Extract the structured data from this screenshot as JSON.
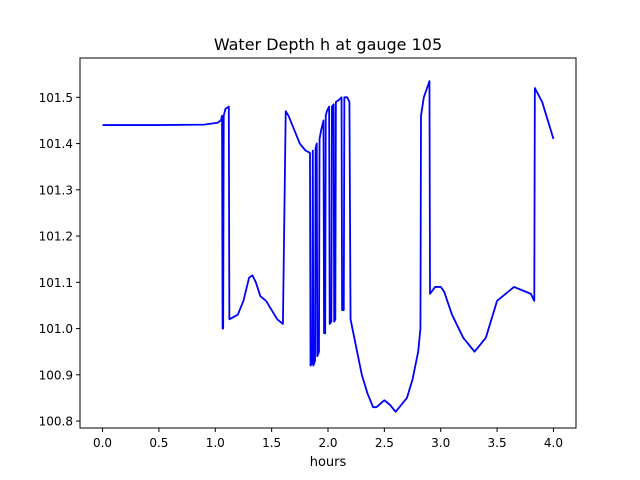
{
  "chart_data": {
    "type": "line",
    "title": "Water Depth h at gauge 105",
    "xlabel": "hours",
    "ylabel": "",
    "xlim": [
      -0.2,
      4.2
    ],
    "ylim": [
      100.785,
      101.585
    ],
    "x_ticks": [
      0,
      0.5,
      1,
      1.5,
      2,
      2.5,
      3,
      3.5,
      4
    ],
    "x_tick_labels": [
      "0.0",
      "0.5",
      "1.0",
      "1.5",
      "2.0",
      "2.5",
      "3.0",
      "3.5",
      "4.0"
    ],
    "y_ticks": [
      100.8,
      100.9,
      101.0,
      101.1,
      101.2,
      101.3,
      101.4,
      101.5
    ],
    "y_tick_labels": [
      "100.8",
      "100.9",
      "101.0",
      "101.1",
      "101.2",
      "101.3",
      "101.4",
      "101.5"
    ],
    "grid": false,
    "line_color": "#0000ff",
    "series": [
      {
        "points": [
          [
            0.0,
            101.44
          ],
          [
            0.5,
            101.44
          ],
          [
            0.9,
            101.441
          ],
          [
            1.02,
            101.445
          ],
          [
            1.05,
            101.45
          ],
          [
            1.06,
            101.46
          ],
          [
            1.065,
            101.0
          ],
          [
            1.07,
            101.0
          ],
          [
            1.075,
            101.46
          ],
          [
            1.09,
            101.475
          ],
          [
            1.12,
            101.48
          ],
          [
            1.125,
            101.02
          ],
          [
            1.2,
            101.03
          ],
          [
            1.25,
            101.06
          ],
          [
            1.3,
            101.11
          ],
          [
            1.33,
            101.115
          ],
          [
            1.36,
            101.1
          ],
          [
            1.4,
            101.07
          ],
          [
            1.45,
            101.06
          ],
          [
            1.5,
            101.04
          ],
          [
            1.55,
            101.02
          ],
          [
            1.6,
            101.01
          ],
          [
            1.625,
            101.47
          ],
          [
            1.65,
            101.46
          ],
          [
            1.7,
            101.43
          ],
          [
            1.75,
            101.4
          ],
          [
            1.8,
            101.385
          ],
          [
            1.84,
            101.38
          ],
          [
            1.845,
            100.92
          ],
          [
            1.86,
            100.925
          ],
          [
            1.865,
            101.385
          ],
          [
            1.87,
            100.92
          ],
          [
            1.885,
            100.93
          ],
          [
            1.89,
            101.39
          ],
          [
            1.9,
            101.4
          ],
          [
            1.905,
            100.94
          ],
          [
            1.92,
            100.95
          ],
          [
            1.925,
            101.41
          ],
          [
            1.94,
            101.43
          ],
          [
            1.96,
            101.45
          ],
          [
            1.965,
            100.99
          ],
          [
            1.975,
            100.99
          ],
          [
            1.98,
            101.46
          ],
          [
            1.99,
            101.47
          ],
          [
            2.0,
            101.475
          ],
          [
            2.01,
            101.48
          ],
          [
            2.015,
            101.01
          ],
          [
            2.03,
            101.015
          ],
          [
            2.035,
            101.48
          ],
          [
            2.05,
            101.485
          ],
          [
            2.055,
            101.015
          ],
          [
            2.065,
            101.02
          ],
          [
            2.07,
            101.49
          ],
          [
            2.1,
            101.495
          ],
          [
            2.12,
            101.5
          ],
          [
            2.125,
            101.04
          ],
          [
            2.14,
            101.04
          ],
          [
            2.145,
            101.5
          ],
          [
            2.17,
            101.5
          ],
          [
            2.19,
            101.49
          ],
          [
            2.2,
            101.02
          ],
          [
            2.25,
            100.96
          ],
          [
            2.3,
            100.9
          ],
          [
            2.35,
            100.86
          ],
          [
            2.4,
            100.83
          ],
          [
            2.43,
            100.83
          ],
          [
            2.5,
            100.845
          ],
          [
            2.55,
            100.835
          ],
          [
            2.6,
            100.82
          ],
          [
            2.7,
            100.85
          ],
          [
            2.75,
            100.89
          ],
          [
            2.8,
            100.95
          ],
          [
            2.82,
            101.0
          ],
          [
            2.825,
            101.46
          ],
          [
            2.85,
            101.5
          ],
          [
            2.9,
            101.535
          ],
          [
            2.905,
            101.075
          ],
          [
            2.95,
            101.09
          ],
          [
            3.0,
            101.09
          ],
          [
            3.03,
            101.08
          ],
          [
            3.1,
            101.03
          ],
          [
            3.2,
            100.98
          ],
          [
            3.3,
            100.95
          ],
          [
            3.4,
            100.98
          ],
          [
            3.5,
            101.06
          ],
          [
            3.6,
            101.08
          ],
          [
            3.65,
            101.09
          ],
          [
            3.7,
            101.085
          ],
          [
            3.8,
            101.075
          ],
          [
            3.83,
            101.06
          ],
          [
            3.835,
            101.52
          ],
          [
            3.9,
            101.49
          ],
          [
            3.95,
            101.45
          ],
          [
            4.0,
            101.41
          ]
        ]
      }
    ]
  }
}
